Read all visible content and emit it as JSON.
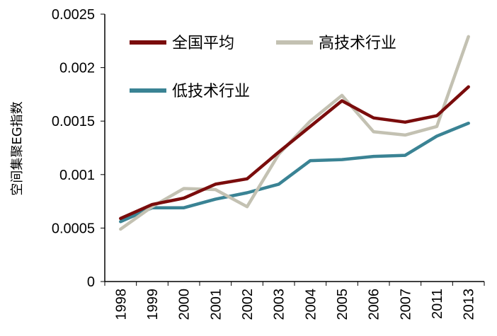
{
  "chart_data": {
    "type": "line",
    "categories": [
      "1998",
      "1999",
      "2000",
      "2001",
      "2002",
      "2003",
      "2004",
      "2005",
      "2006",
      "2007",
      "2011",
      "2013"
    ],
    "ylabel": "空间集聚EG指数",
    "ylim": [
      0,
      0.0025
    ],
    "yticks": [
      "0",
      "0.0005",
      "0.001",
      "0.0015",
      "0.002",
      "0.0025"
    ],
    "grid": false,
    "legend_position": "top-left",
    "series": [
      {
        "name": "全国平均",
        "color": "#7a0c0c",
        "values": [
          0.00059,
          0.00072,
          0.00078,
          0.00091,
          0.00096,
          0.00121,
          0.00145,
          0.00169,
          0.00153,
          0.00149,
          0.00155,
          0.00182
        ]
      },
      {
        "name": "高技术行业",
        "color": "#c3c1b2",
        "values": [
          0.00049,
          0.0007,
          0.00087,
          0.00086,
          0.0007,
          0.00119,
          0.0015,
          0.00174,
          0.0014,
          0.00137,
          0.00145,
          0.00229
        ]
      },
      {
        "name": "低技术行业",
        "color": "#3a8394",
        "values": [
          0.00056,
          0.00069,
          0.00069,
          0.00077,
          0.00083,
          0.00091,
          0.00113,
          0.00114,
          0.00117,
          0.00118,
          0.00136,
          0.00148
        ]
      }
    ]
  }
}
